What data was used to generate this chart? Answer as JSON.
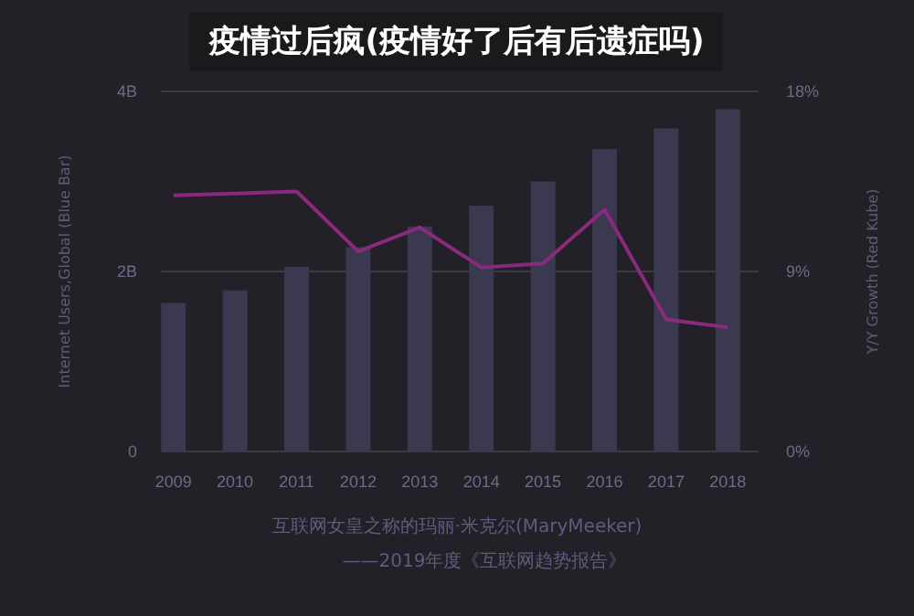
{
  "chart_data": {
    "type": "bar",
    "title": "疫情过后疯(疫情好了后有后遗症吗)",
    "categories": [
      "2009",
      "2010",
      "2011",
      "2012",
      "2013",
      "2014",
      "2015",
      "2016",
      "2017",
      "2018"
    ],
    "series": [
      {
        "color": "#3a3950",
        "values": [
          1.65,
          1.79,
          2.05,
          2.27,
          2.5,
          2.73,
          3.0,
          3.36,
          3.59,
          3.8
        ]
      },
      {
        "type": "line",
        "axis": "y2",
        "color": "#8a2a7e",
        "values": [
          12.8,
          12.9,
          13.0,
          10.0,
          11.2,
          9.2,
          9.4,
          12.1,
          6.6,
          6.2
        ]
      }
    ],
    "ylabel": "Internet Users,Global (Blue Bar)",
    "y2label": "Y/Y Growth (Red Kube)",
    "ylim": [
      0,
      4
    ],
    "yticks": [
      0,
      {
        "value": 2,
        "label": "2B"
      },
      {
        "value": 4,
        "label": "4B"
      }
    ],
    "y2lim": [
      0,
      18
    ],
    "y2ticks": [
      {
        "value": 0,
        "label": "0%"
      },
      {
        "value": 9,
        "label": "9%"
      },
      {
        "value": 18,
        "label": "18%"
      }
    ],
    "grid": "y",
    "marker": "none",
    "line_style": "solid",
    "annotations": [
      "互联网女皇之称的玛丽·米克尔(MaryMeeker)",
      "——2019年度《互联网趋势报告》"
    ]
  }
}
